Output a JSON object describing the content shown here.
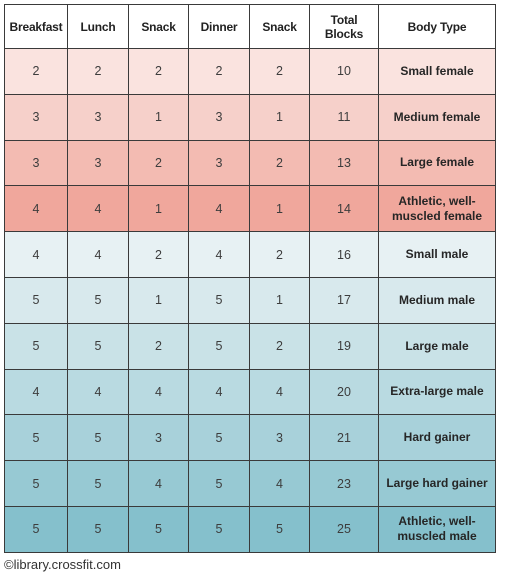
{
  "table": {
    "headers": [
      "Breakfast",
      "Lunch",
      "Snack",
      "Dinner",
      "Snack",
      "Total\nBlocks",
      "Body Type"
    ],
    "rows": [
      {
        "cells": [
          "2",
          "2",
          "2",
          "2",
          "2",
          "10",
          "Small female"
        ],
        "color": "#fae3df"
      },
      {
        "cells": [
          "3",
          "3",
          "1",
          "3",
          "1",
          "11",
          "Medium female"
        ],
        "color": "#f6d0ca"
      },
      {
        "cells": [
          "3",
          "3",
          "2",
          "3",
          "2",
          "13",
          "Large female"
        ],
        "color": "#f3bbb2"
      },
      {
        "cells": [
          "4",
          "4",
          "1",
          "4",
          "1",
          "14",
          "Athletic, well-muscled female"
        ],
        "color": "#f0a79c"
      },
      {
        "cells": [
          "4",
          "4",
          "2",
          "4",
          "2",
          "16",
          "Small male"
        ],
        "color": "#e7f1f3"
      },
      {
        "cells": [
          "5",
          "5",
          "1",
          "5",
          "1",
          "17",
          "Medium male"
        ],
        "color": "#d8e9ed"
      },
      {
        "cells": [
          "5",
          "5",
          "2",
          "5",
          "2",
          "19",
          "Large male"
        ],
        "color": "#c9e2e7"
      },
      {
        "cells": [
          "4",
          "4",
          "4",
          "4",
          "4",
          "20",
          "Extra-large male"
        ],
        "color": "#b9dae1"
      },
      {
        "cells": [
          "5",
          "5",
          "3",
          "5",
          "3",
          "21",
          "Hard gainer"
        ],
        "color": "#a8d1da"
      },
      {
        "cells": [
          "5",
          "5",
          "4",
          "5",
          "4",
          "23",
          "Large hard gainer"
        ],
        "color": "#97c9d3"
      },
      {
        "cells": [
          "5",
          "5",
          "5",
          "5",
          "5",
          "25",
          "Athletic, well-muscled male"
        ],
        "color": "#85c0cc"
      }
    ]
  },
  "credit": "©library.crossfit.com"
}
